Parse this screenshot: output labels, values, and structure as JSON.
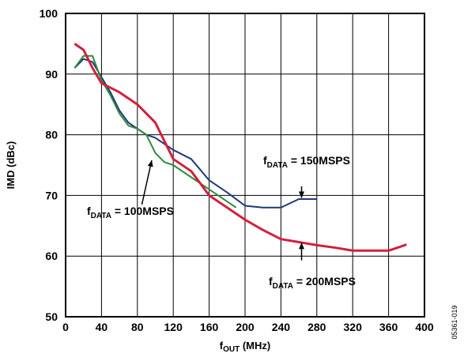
{
  "chart_data": {
    "type": "line",
    "title": "",
    "ylabel": "IMD (dBc)",
    "xlabel": {
      "main": "f",
      "sub": "OUT",
      "unit": " (MHz)"
    },
    "xlim": [
      0,
      400
    ],
    "ylim": [
      50,
      100
    ],
    "x_ticks": [
      0,
      40,
      80,
      120,
      160,
      200,
      240,
      280,
      320,
      360,
      400
    ],
    "y_ticks": [
      50,
      60,
      70,
      80,
      90,
      100
    ],
    "grid": true,
    "figure_id": "05361-019",
    "series": [
      {
        "name": "fDATA = 150MSPS",
        "label_parts": {
          "main": "f",
          "sub": "DATA",
          "rest": " = 150MSPS"
        },
        "color": "#1f3a7a",
        "x": [
          10,
          20,
          30,
          40,
          50,
          60,
          70,
          80,
          90,
          100,
          110,
          120,
          140,
          160,
          180,
          200,
          220,
          240,
          260,
          280
        ],
        "y": [
          91,
          92.5,
          92,
          89.5,
          87,
          84,
          82,
          81,
          80,
          79.5,
          78.5,
          77.5,
          76,
          72.5,
          70.5,
          68.3,
          68,
          68,
          69.4,
          69.4
        ]
      },
      {
        "name": "fDATA = 100MSPS",
        "label_parts": {
          "main": "f",
          "sub": "DATA",
          "rest": " = 100MSPS"
        },
        "color": "#2e8b3e",
        "x": [
          10,
          20,
          30,
          40,
          50,
          60,
          70,
          80,
          90,
          100,
          110,
          120,
          140,
          160,
          180,
          190
        ],
        "y": [
          91,
          93,
          93,
          89,
          86.5,
          83.5,
          81.5,
          81,
          80,
          77,
          75.5,
          75,
          73,
          71,
          69,
          68
        ]
      },
      {
        "name": "fDATA = 200MSPS",
        "label_parts": {
          "main": "f",
          "sub": "DATA",
          "rest": " = 200MSPS"
        },
        "color": "#d41f3c",
        "x": [
          10,
          20,
          30,
          40,
          60,
          80,
          100,
          120,
          140,
          160,
          180,
          200,
          220,
          240,
          260,
          280,
          300,
          320,
          340,
          360,
          380
        ],
        "y": [
          95,
          94,
          91,
          88.5,
          87,
          85,
          82,
          76,
          74,
          70,
          68,
          66,
          64.3,
          62.8,
          62.3,
          61.8,
          61.4,
          60.9,
          60.9,
          60.9,
          61.9
        ]
      }
    ],
    "annotations": [
      {
        "series": 0,
        "text_x": 0,
        "text_y": 0,
        "arrow_from": [
          263,
          71.5
        ],
        "arrow_to": [
          263,
          69.6
        ]
      },
      {
        "series": 1,
        "text_x": 0,
        "text_y": 0,
        "arrow_from": [
          85,
          68.5
        ],
        "arrow_to": [
          96,
          75.8
        ]
      },
      {
        "series": 2,
        "text_x": 0,
        "text_y": 0,
        "arrow_from": [
          263,
          59.3
        ],
        "arrow_to": [
          263,
          62.2
        ]
      }
    ]
  }
}
